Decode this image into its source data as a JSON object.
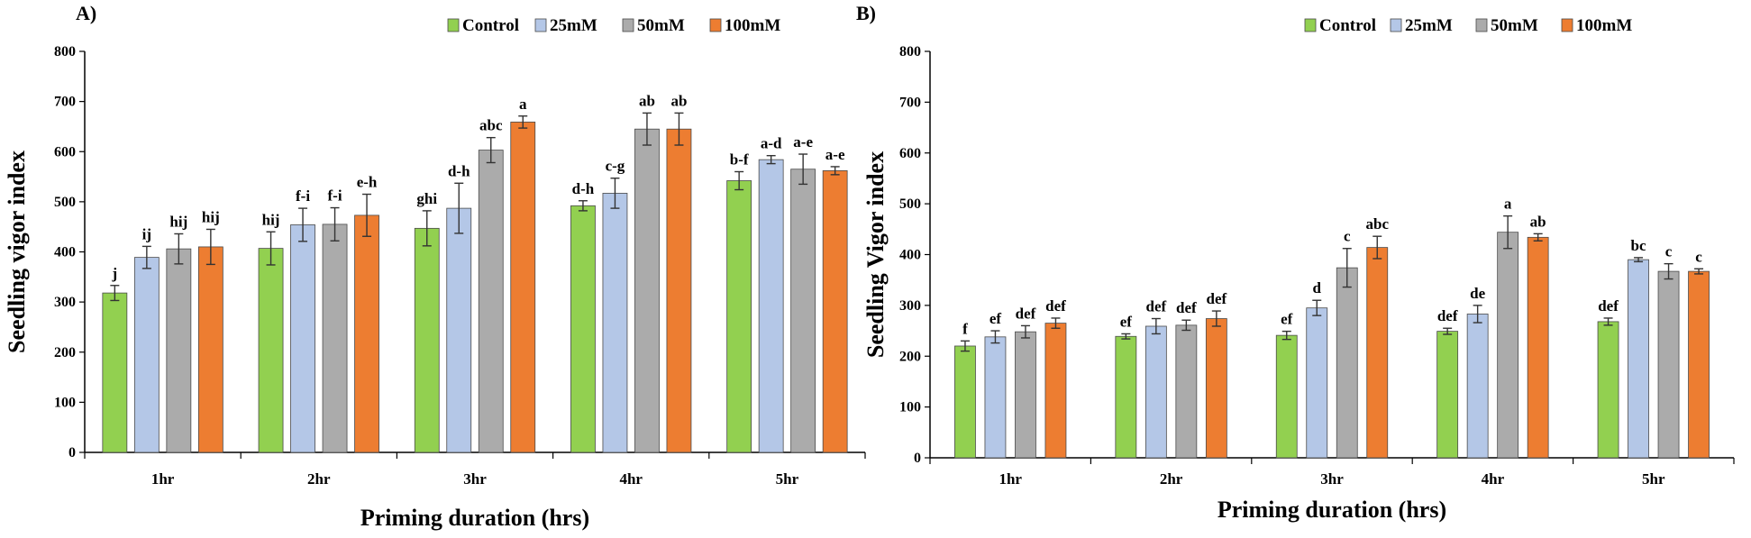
{
  "chart_data": [
    {
      "type": "bar",
      "panel_label": "A)",
      "title": "",
      "xlabel": "Priming duration (hrs)",
      "ylabel": "Seedling vigor index",
      "ylim": [
        0,
        800
      ],
      "yticks": [
        0,
        100,
        200,
        300,
        400,
        500,
        600,
        700,
        800
      ],
      "grid": false,
      "legend_position": "top-right",
      "categories": [
        "1hr",
        "2hr",
        "3hr",
        "4hr",
        "5hr"
      ],
      "series": [
        {
          "name": "Control",
          "color": "#92D050",
          "values": [
            318,
            407,
            447,
            492,
            542
          ],
          "errors": [
            15,
            33,
            35,
            10,
            18
          ],
          "labels": [
            "j",
            "hij",
            "ghi",
            "d-h",
            "b-f"
          ]
        },
        {
          "name": "25mM",
          "color": "#B4C7E7",
          "values": [
            389,
            454,
            487,
            517,
            584
          ],
          "errors": [
            22,
            33,
            50,
            30,
            8
          ],
          "labels": [
            "ij",
            "f-i",
            "d-h",
            "c-g",
            "a-d"
          ]
        },
        {
          "name": "50mM",
          "color": "#ABABAB",
          "values": [
            406,
            455,
            603,
            645,
            565
          ],
          "errors": [
            30,
            33,
            25,
            32,
            30
          ],
          "labels": [
            "hij",
            "f-i",
            "abc",
            "ab",
            "a-e"
          ]
        },
        {
          "name": "100mM",
          "color": "#ED7D31",
          "values": [
            410,
            473,
            659,
            645,
            562
          ],
          "errors": [
            35,
            42,
            12,
            32,
            8
          ],
          "labels": [
            "hij",
            "e-h",
            "a",
            "ab",
            "a-e"
          ]
        }
      ]
    },
    {
      "type": "bar",
      "panel_label": "B)",
      "title": "",
      "xlabel": "Priming duration (hrs)",
      "ylabel": "Seedling Vigor index",
      "ylim": [
        0,
        800
      ],
      "yticks": [
        0,
        100,
        200,
        300,
        400,
        500,
        600,
        700,
        800
      ],
      "grid": false,
      "legend_position": "top-right",
      "categories": [
        "1hr",
        "2hr",
        "3hr",
        "4hr",
        "5hr"
      ],
      "series": [
        {
          "name": "Control",
          "color": "#92D050",
          "values": [
            220,
            239,
            241,
            249,
            268
          ],
          "errors": [
            10,
            5,
            8,
            6,
            7
          ],
          "labels": [
            "f",
            "ef",
            "ef",
            "def",
            "def"
          ]
        },
        {
          "name": "25mM",
          "color": "#B4C7E7",
          "values": [
            238,
            259,
            295,
            283,
            390
          ],
          "errors": [
            12,
            15,
            15,
            17,
            4
          ],
          "labels": [
            "ef",
            "def",
            "d",
            "de",
            "bc"
          ]
        },
        {
          "name": "50mM",
          "color": "#ABABAB",
          "values": [
            248,
            261,
            374,
            444,
            367
          ],
          "errors": [
            12,
            10,
            38,
            32,
            15
          ],
          "labels": [
            "def",
            "def",
            "c",
            "a",
            "c"
          ]
        },
        {
          "name": "100mM",
          "color": "#ED7D31",
          "values": [
            265,
            274,
            414,
            434,
            367
          ],
          "errors": [
            10,
            15,
            22,
            7,
            5
          ],
          "labels": [
            "def",
            "def",
            "abc",
            "ab",
            "c"
          ]
        }
      ]
    }
  ]
}
